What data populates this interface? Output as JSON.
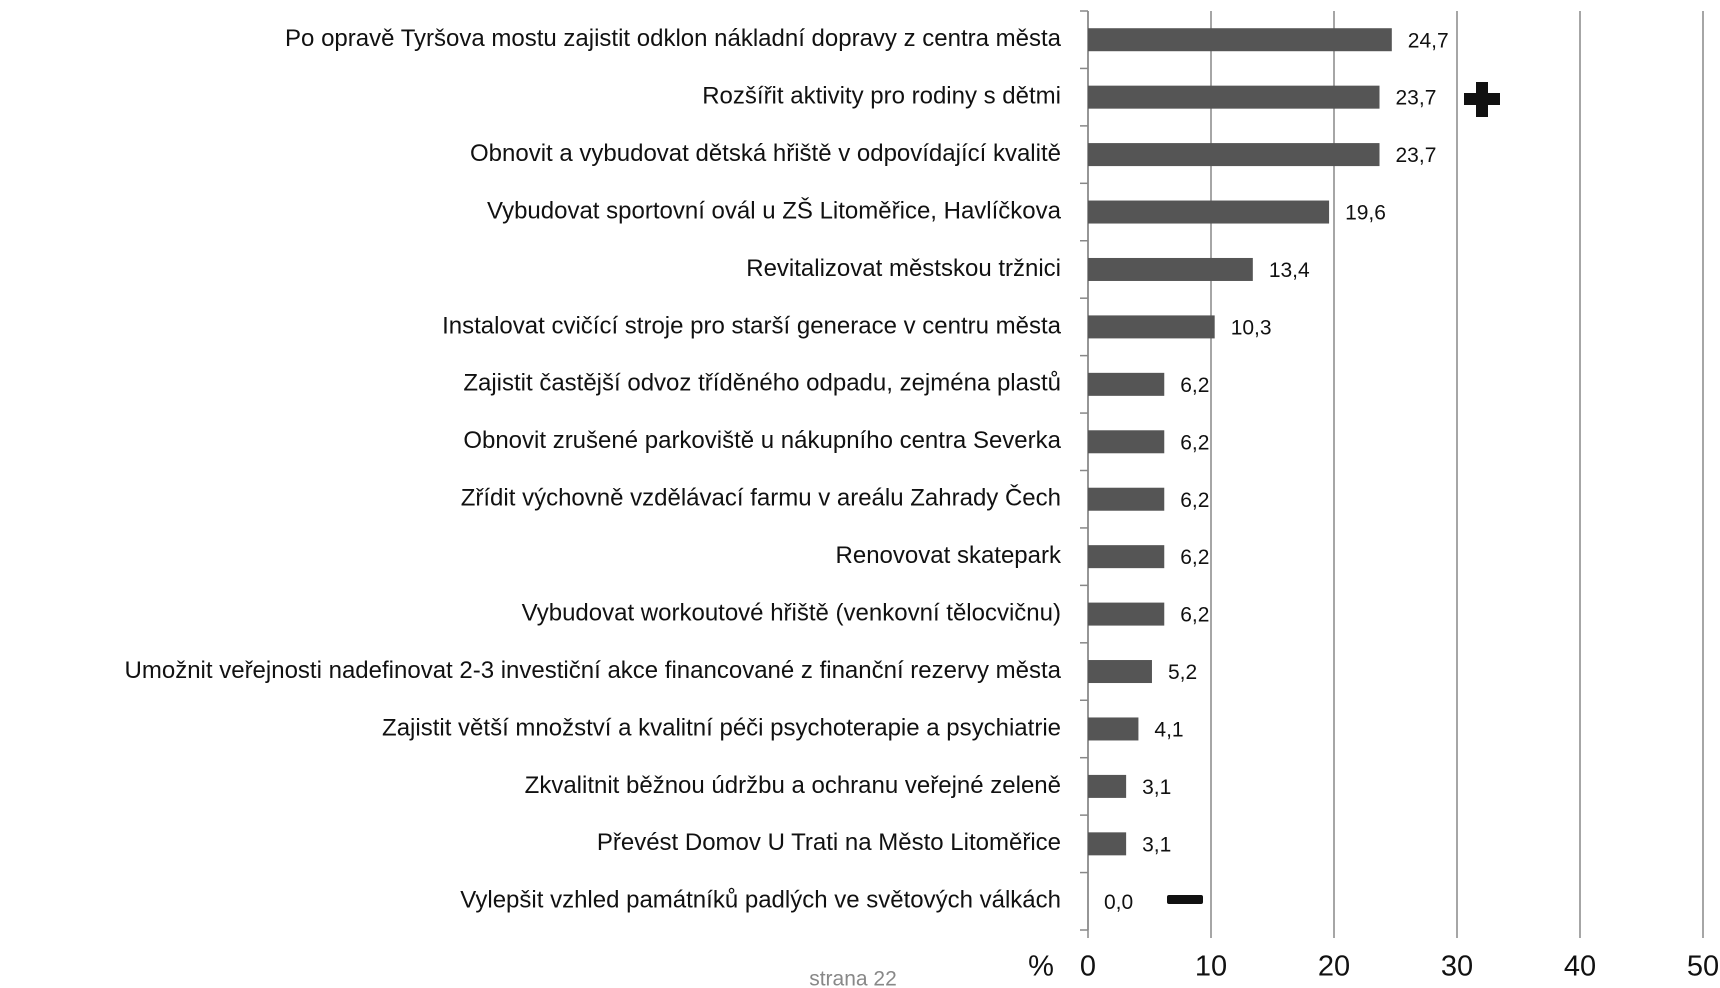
{
  "chart_data": {
    "type": "bar",
    "categories": [
      "Po opravě Tyršova mostu zajistit odklon nákladní dopravy z centra města",
      "Rozšířit aktivity pro rodiny s dětmi",
      "Obnovit a vybudovat dětská hřiště v odpovídající kvalitě",
      "Vybudovat sportovní ovál u ZŠ Litoměřice, Havlíčkova",
      "Revitalizovat městskou tržnici",
      "Instalovat cvičící stroje pro starší generace v centru města",
      "Zajistit častější odvoz tříděného odpadu, zejména plastů",
      "Obnovit zrušené parkoviště u nákupního centra Severka",
      "Zřídit výchovně vzdělávací farmu v areálu Zahrady Čech",
      "Renovovat skatepark",
      "Vybudovat workoutové hřiště (venkovní tělocvičnu)",
      "Umožnit veřejnosti nadefinovat 2-3 investiční akce financované z finanční rezervy města",
      "Zajistit větší množství a kvalitní péči psychoterapie a psychiatrie",
      "Zkvalitnit běžnou údržbu a ochranu veřejné zeleně",
      "Převést Domov U Trati na Město Litoměřice",
      "Vylepšit vzhled památníků padlých ve světových válkách"
    ],
    "values": [
      24.7,
      23.7,
      23.7,
      19.6,
      13.4,
      10.3,
      6.2,
      6.2,
      6.2,
      6.2,
      6.2,
      5.2,
      4.1,
      3.1,
      3.1,
      0.0
    ],
    "value_labels": [
      "24,7",
      "23,7",
      "23,7",
      "19,6",
      "13,4",
      "10,3",
      "6,2",
      "6,2",
      "6,2",
      "6,2",
      "6,2",
      "5,2",
      "4,1",
      "3,1",
      "3,1",
      "0,0"
    ],
    "color": "#555555",
    "xlabel": "%",
    "xlim": [
      0,
      50
    ],
    "xticks": [
      0,
      10,
      20,
      30,
      40,
      50
    ],
    "grid": true,
    "footer": "strana 22"
  }
}
